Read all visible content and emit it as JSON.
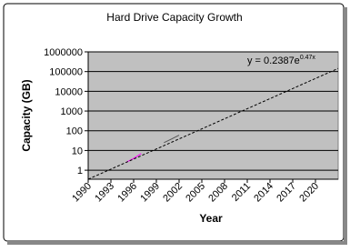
{
  "chart_data": {
    "type": "line",
    "title": "Hard Drive Capacity Growth",
    "x_label": "Year",
    "y_label": "Capacity (GB)",
    "xlim": [
      1990,
      2023
    ],
    "xticks": [
      1990,
      1993,
      1996,
      1999,
      2002,
      2005,
      2008,
      2011,
      2014,
      2017,
      2020
    ],
    "ylim": [
      0.35,
      1000000
    ],
    "yticks": [
      1,
      10,
      100,
      1000,
      10000,
      100000,
      1000000
    ],
    "log_y": true,
    "grid": true,
    "plot_background": "#c0c0c0",
    "series": [
      {
        "color": "#ff00ff",
        "x": [
          1995,
          1996,
          1997
        ],
        "values": [
          2.5,
          4,
          7
        ]
      },
      {
        "color": "#555555",
        "x": [
          2000,
          2001,
          2002
        ],
        "values": [
          25,
          38,
          60
        ]
      },
      {
        "color": "#000000",
        "dashed": true,
        "x": [
          1990,
          2023
        ],
        "values": [
          0.35,
          145000
        ]
      }
    ],
    "trendline_label": {
      "text": "y = 0.2387e",
      "exponent": "0.47x"
    }
  }
}
